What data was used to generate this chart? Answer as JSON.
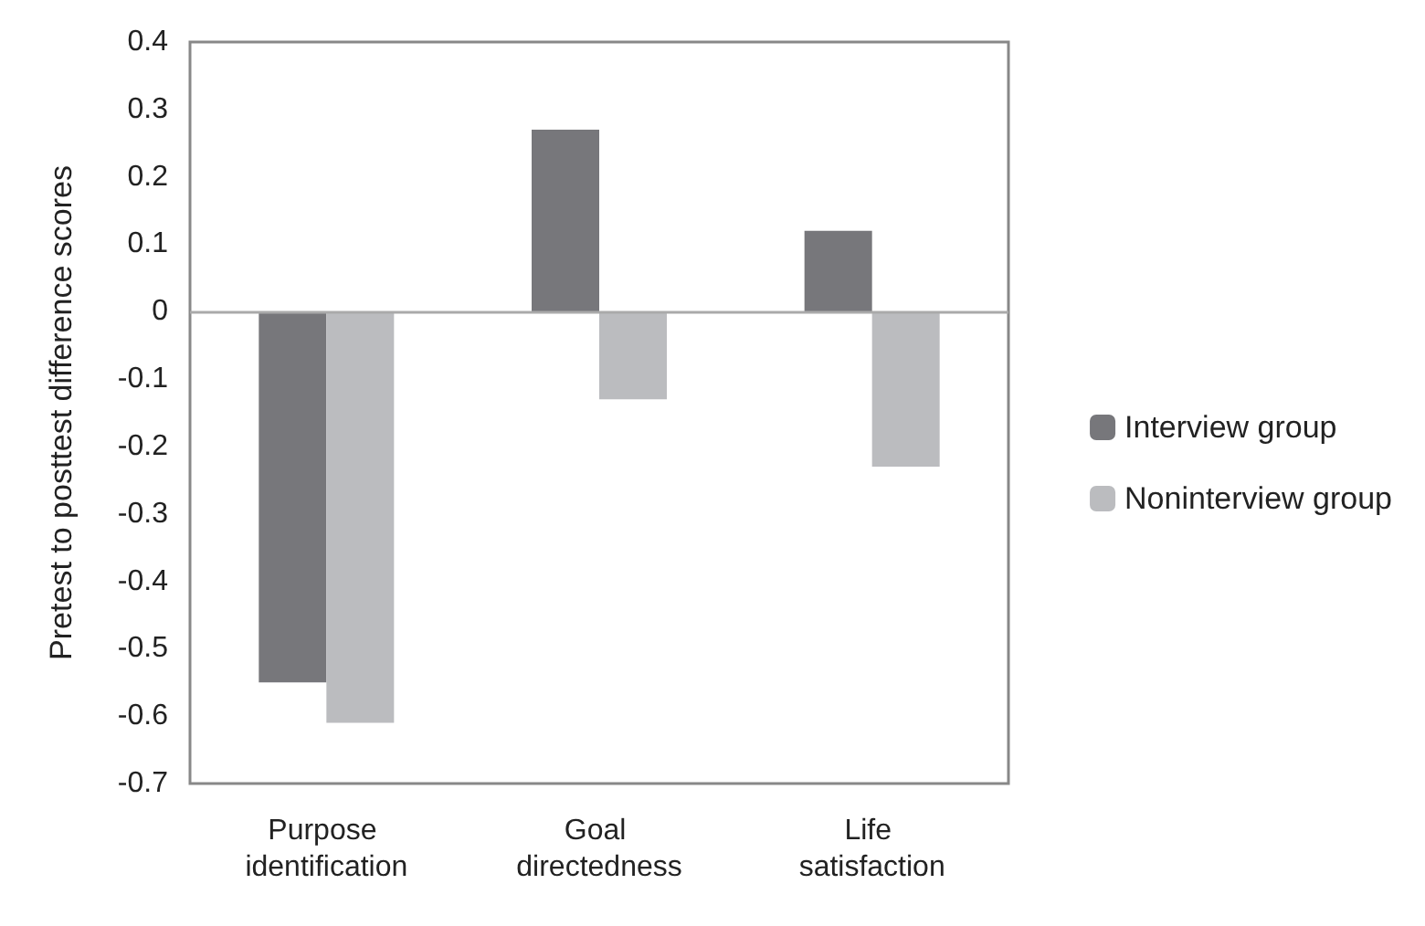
{
  "chart_data": {
    "type": "bar",
    "ylabel": "Pretest to posttest difference scores",
    "categories": [
      "Purpose identification",
      "Goal directedness",
      "Life satisfaction"
    ],
    "series": [
      {
        "name": "Interview group",
        "color": "#77777b",
        "values": [
          -0.55,
          0.27,
          0.12
        ]
      },
      {
        "name": "Noninterview group",
        "color": "#bbbcbf",
        "values": [
          -0.61,
          -0.13,
          -0.23
        ]
      }
    ],
    "ylim": [
      -0.7,
      0.4
    ],
    "yticks": [
      -0.7,
      -0.6,
      -0.5,
      -0.4,
      -0.3,
      -0.2,
      -0.1,
      0,
      0.1,
      0.2,
      0.3,
      0.4
    ],
    "ref_lines": [
      {
        "axis": "y",
        "value": 0,
        "color": "#aaaaaa"
      }
    ],
    "grid": false,
    "legend": "right"
  }
}
